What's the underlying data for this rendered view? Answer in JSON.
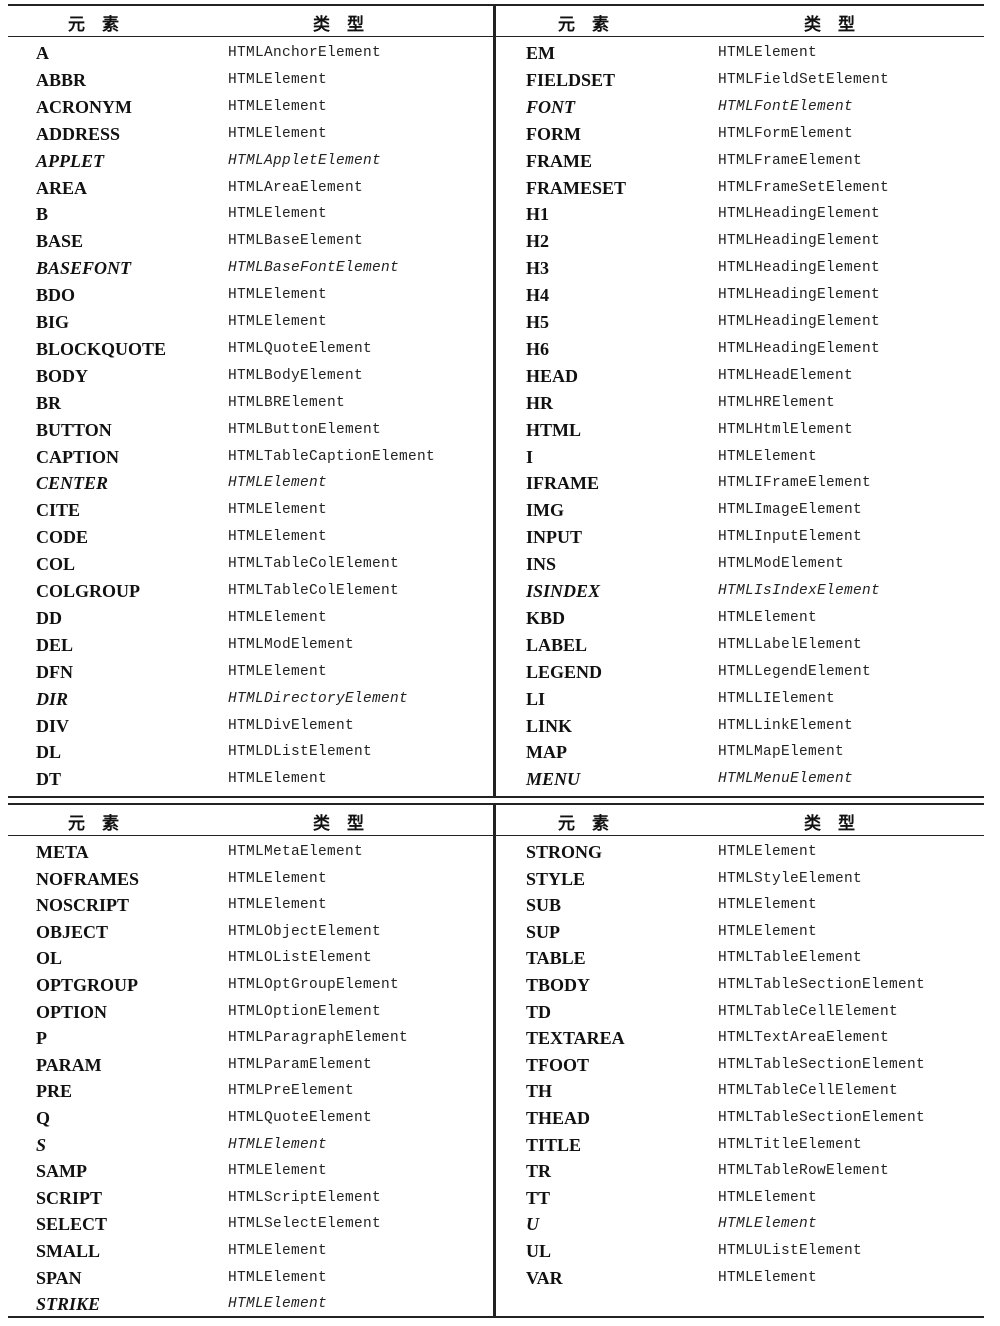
{
  "headers": {
    "element": "元　素",
    "type": "类　型"
  },
  "tables": [
    {
      "left": [
        {
          "element": "A",
          "type": "HTMLAnchorElement"
        },
        {
          "element": "ABBR",
          "type": "HTMLElement"
        },
        {
          "element": "ACRONYM",
          "type": "HTMLElement"
        },
        {
          "element": "ADDRESS",
          "type": "HTMLElement"
        },
        {
          "element": "APPLET",
          "type": "HTMLAppletElement",
          "italic": true
        },
        {
          "element": "AREA",
          "type": "HTMLAreaElement"
        },
        {
          "element": "B",
          "type": "HTMLElement"
        },
        {
          "element": "BASE",
          "type": "HTMLBaseElement"
        },
        {
          "element": "BASEFONT",
          "type": "HTMLBaseFontElement",
          "italic": true
        },
        {
          "element": "BDO",
          "type": "HTMLElement"
        },
        {
          "element": "BIG",
          "type": "HTMLElement"
        },
        {
          "element": "BLOCKQUOTE",
          "type": "HTMLQuoteElement"
        },
        {
          "element": "BODY",
          "type": "HTMLBodyElement"
        },
        {
          "element": "BR",
          "type": "HTMLBRElement"
        },
        {
          "element": "BUTTON",
          "type": "HTMLButtonElement"
        },
        {
          "element": "CAPTION",
          "type": "HTMLTableCaptionElement"
        },
        {
          "element": "CENTER",
          "type": "HTMLElement",
          "italic": true
        },
        {
          "element": "CITE",
          "type": "HTMLElement"
        },
        {
          "element": "CODE",
          "type": "HTMLElement"
        },
        {
          "element": "COL",
          "type": "HTMLTableColElement"
        },
        {
          "element": "COLGROUP",
          "type": "HTMLTableColElement"
        },
        {
          "element": "DD",
          "type": "HTMLElement"
        },
        {
          "element": "DEL",
          "type": "HTMLModElement"
        },
        {
          "element": "DFN",
          "type": "HTMLElement"
        },
        {
          "element": "DIR",
          "type": "HTMLDirectoryElement",
          "italic": true
        },
        {
          "element": "DIV",
          "type": "HTMLDivElement"
        },
        {
          "element": "DL",
          "type": "HTMLDListElement"
        },
        {
          "element": "DT",
          "type": "HTMLElement"
        }
      ],
      "right": [
        {
          "element": "EM",
          "type": "HTMLElement"
        },
        {
          "element": "FIELDSET",
          "type": "HTMLFieldSetElement"
        },
        {
          "element": "FONT",
          "type": "HTMLFontElement",
          "italic": true
        },
        {
          "element": "FORM",
          "type": "HTMLFormElement"
        },
        {
          "element": "FRAME",
          "type": "HTMLFrameElement"
        },
        {
          "element": "FRAMESET",
          "type": "HTMLFrameSetElement"
        },
        {
          "element": "H1",
          "type": "HTMLHeadingElement"
        },
        {
          "element": "H2",
          "type": "HTMLHeadingElement"
        },
        {
          "element": "H3",
          "type": "HTMLHeadingElement"
        },
        {
          "element": "H4",
          "type": "HTMLHeadingElement"
        },
        {
          "element": "H5",
          "type": "HTMLHeadingElement"
        },
        {
          "element": "H6",
          "type": "HTMLHeadingElement"
        },
        {
          "element": "HEAD",
          "type": "HTMLHeadElement"
        },
        {
          "element": "HR",
          "type": "HTMLHRElement"
        },
        {
          "element": "HTML",
          "type": "HTMLHtmlElement"
        },
        {
          "element": "I",
          "type": "HTMLElement"
        },
        {
          "element": "IFRAME",
          "type": "HTMLIFrameElement"
        },
        {
          "element": "IMG",
          "type": "HTMLImageElement"
        },
        {
          "element": "INPUT",
          "type": "HTMLInputElement"
        },
        {
          "element": "INS",
          "type": "HTMLModElement"
        },
        {
          "element": "ISINDEX",
          "type": "HTMLIsIndexElement",
          "italic": true
        },
        {
          "element": "KBD",
          "type": "HTMLElement"
        },
        {
          "element": "LABEL",
          "type": "HTMLLabelElement"
        },
        {
          "element": "LEGEND",
          "type": "HTMLLegendElement"
        },
        {
          "element": "LI",
          "type": "HTMLLIElement"
        },
        {
          "element": "LINK",
          "type": "HTMLLinkElement"
        },
        {
          "element": "MAP",
          "type": "HTMLMapElement"
        },
        {
          "element": "MENU",
          "type": "HTMLMenuElement",
          "italic": true
        }
      ]
    },
    {
      "left": [
        {
          "element": "META",
          "type": "HTMLMetaElement"
        },
        {
          "element": "NOFRAMES",
          "type": "HTMLElement"
        },
        {
          "element": "NOSCRIPT",
          "type": "HTMLElement"
        },
        {
          "element": "OBJECT",
          "type": "HTMLObjectElement"
        },
        {
          "element": "OL",
          "type": "HTMLOListElement"
        },
        {
          "element": "OPTGROUP",
          "type": "HTMLOptGroupElement"
        },
        {
          "element": "OPTION",
          "type": "HTMLOptionElement"
        },
        {
          "element": "P",
          "type": "HTMLParagraphElement"
        },
        {
          "element": "PARAM",
          "type": "HTMLParamElement"
        },
        {
          "element": "PRE",
          "type": "HTMLPreElement"
        },
        {
          "element": "Q",
          "type": "HTMLQuoteElement"
        },
        {
          "element": "S",
          "type": "HTMLElement",
          "italic": true
        },
        {
          "element": "SAMP",
          "type": "HTMLElement"
        },
        {
          "element": "SCRIPT",
          "type": "HTMLScriptElement"
        },
        {
          "element": "SELECT",
          "type": "HTMLSelectElement"
        },
        {
          "element": "SMALL",
          "type": "HTMLElement"
        },
        {
          "element": "SPAN",
          "type": "HTMLElement"
        },
        {
          "element": "STRIKE",
          "type": "HTMLElement",
          "italic": true
        }
      ],
      "right": [
        {
          "element": "STRONG",
          "type": "HTMLElement"
        },
        {
          "element": "STYLE",
          "type": "HTMLStyleElement"
        },
        {
          "element": "SUB",
          "type": "HTMLElement"
        },
        {
          "element": "SUP",
          "type": "HTMLElement"
        },
        {
          "element": "TABLE",
          "type": "HTMLTableElement"
        },
        {
          "element": "TBODY",
          "type": "HTMLTableSectionElement"
        },
        {
          "element": "TD",
          "type": "HTMLTableCellElement"
        },
        {
          "element": "TEXTAREA",
          "type": "HTMLTextAreaElement"
        },
        {
          "element": "TFOOT",
          "type": "HTMLTableSectionElement"
        },
        {
          "element": "TH",
          "type": "HTMLTableCellElement"
        },
        {
          "element": "THEAD",
          "type": "HTMLTableSectionElement"
        },
        {
          "element": "TITLE",
          "type": "HTMLTitleElement"
        },
        {
          "element": "TR",
          "type": "HTMLTableRowElement"
        },
        {
          "element": "TT",
          "type": "HTMLElement"
        },
        {
          "element": "U",
          "type": "HTMLElement",
          "italic": true
        },
        {
          "element": "UL",
          "type": "HTMLUListElement"
        },
        {
          "element": "VAR",
          "type": "HTMLElement"
        }
      ]
    }
  ]
}
